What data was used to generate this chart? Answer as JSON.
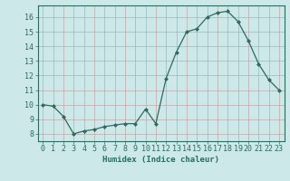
{
  "x": [
    0,
    1,
    2,
    3,
    4,
    5,
    6,
    7,
    8,
    9,
    10,
    11,
    12,
    13,
    14,
    15,
    16,
    17,
    18,
    19,
    20,
    21,
    22,
    23
  ],
  "y": [
    10.0,
    9.9,
    9.2,
    8.0,
    8.2,
    8.3,
    8.5,
    8.6,
    8.7,
    8.7,
    9.7,
    8.7,
    11.8,
    13.6,
    15.0,
    15.2,
    16.0,
    16.3,
    16.4,
    15.7,
    14.4,
    12.8,
    11.7,
    11.0
  ],
  "line_color": "#2e6b5e",
  "marker": "D",
  "marker_size": 2,
  "bg_color": "#cce8e8",
  "grid_color": "#c0a8a8",
  "xlabel": "Humidex (Indice chaleur)",
  "xlim": [
    -0.5,
    23.5
  ],
  "ylim": [
    7.5,
    16.8
  ],
  "yticks": [
    8,
    9,
    10,
    11,
    12,
    13,
    14,
    15,
    16
  ],
  "xticks": [
    0,
    1,
    2,
    3,
    4,
    5,
    6,
    7,
    8,
    9,
    10,
    11,
    12,
    13,
    14,
    15,
    16,
    17,
    18,
    19,
    20,
    21,
    22,
    23
  ],
  "tick_color": "#2e6b5e",
  "label_fontsize": 6.5,
  "tick_fontsize": 6
}
